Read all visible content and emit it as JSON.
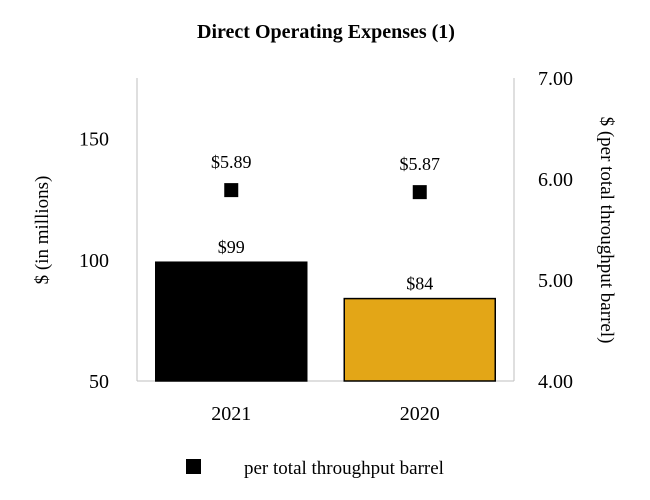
{
  "chart_data": {
    "type": "bar",
    "title": "Direct Operating Expenses (1)",
    "categories": [
      "2021",
      "2020"
    ],
    "series": [
      {
        "axis": "left",
        "kind": "bar",
        "values": [
          99,
          84
        ],
        "labels": [
          "$99",
          "$84"
        ],
        "colors": [
          "#000000",
          "#E3A617"
        ]
      },
      {
        "name": "per total throughput barrel",
        "axis": "right",
        "kind": "marker",
        "values": [
          5.89,
          5.87
        ],
        "labels": [
          "$5.89",
          "$5.87"
        ],
        "color": "#000000"
      }
    ],
    "ylabel_left": "$ (in millions)",
    "ylim_left": [
      50,
      175
    ],
    "yticks_left": [
      "50",
      "100",
      "150"
    ],
    "ylabel_right": "$ (per total throughput barrel)",
    "ylim_right": [
      4.0,
      7.0
    ],
    "yticks_right": [
      "4.00",
      "5.00",
      "6.00",
      "7.00"
    ],
    "grid": false,
    "legend_position": "bottom"
  }
}
